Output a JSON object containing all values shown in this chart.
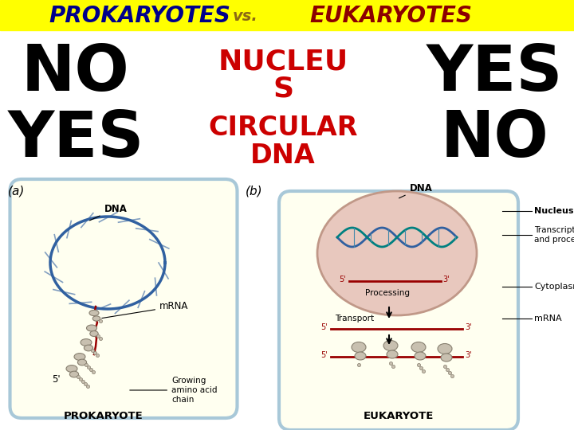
{
  "title_text_prokaryotes": "PROKARYOTES",
  "title_text_vs": "vs.",
  "title_text_eukaryotes": "EUKARYOTES",
  "title_bg_color": "#FFFF00",
  "title_prokaryotes_color": "#00008B",
  "title_vs_color": "#8B6914",
  "title_eukaryotes_color": "#8B0000",
  "label_color_black": "#000000",
  "label_color_red": "#CC0000",
  "bg_color": "#FFFFFF",
  "cell_fill": "#FFFFF0",
  "cell_border": "#A8C8D8",
  "nucleus_fill": "#E8C8BE",
  "nucleus_border": "#C09888",
  "dna_blue": "#3060A0",
  "mrna_red": "#990000",
  "ribosome_fill": "#C8C0B0",
  "ribosome_edge": "#888070",
  "fig_width": 7.2,
  "fig_height": 5.4,
  "dpi": 100
}
